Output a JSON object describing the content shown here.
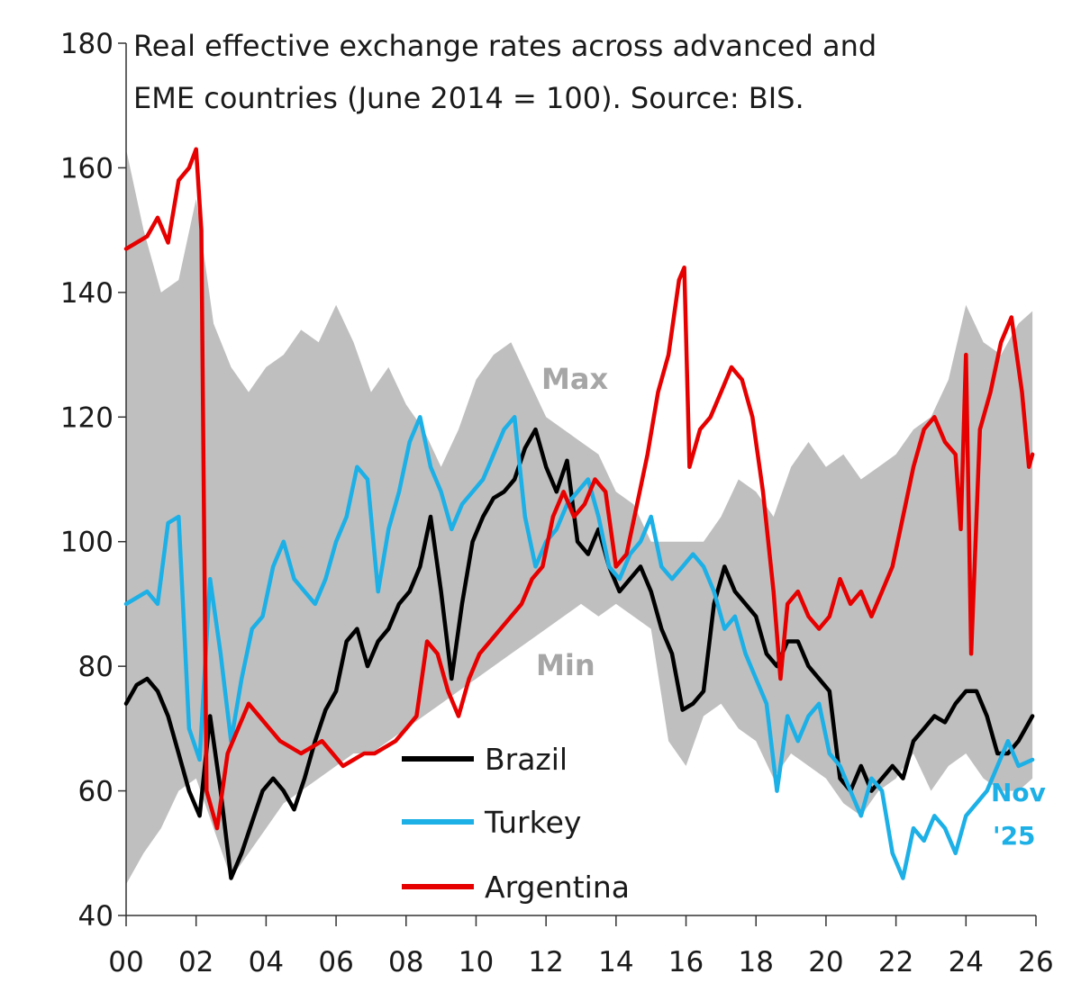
{
  "chart_data": {
    "type": "line",
    "title_lines": [
      "Real effective exchange rates across advanced and",
      "EME countries (June 2014 = 100). Source: BIS."
    ],
    "xlim": [
      2000,
      2026
    ],
    "ylim": [
      40,
      180
    ],
    "x_ticks": [
      0,
      2,
      4,
      6,
      8,
      10,
      12,
      14,
      16,
      18,
      20,
      22,
      24,
      26
    ],
    "x_tick_labels": [
      "00",
      "02",
      "04",
      "06",
      "08",
      "10",
      "12",
      "14",
      "16",
      "18",
      "20",
      "22",
      "24",
      "26"
    ],
    "y_ticks": [
      40,
      60,
      80,
      100,
      120,
      140,
      160,
      180
    ],
    "y_tick_labels": [
      "40",
      "60",
      "80",
      "100",
      "120",
      "140",
      "160",
      "180"
    ],
    "band": {
      "max_label": "Max",
      "min_label": "Min",
      "color": "#bfbfbf",
      "x": [
        0,
        0.5,
        1,
        1.5,
        2,
        2.5,
        3,
        3.5,
        4,
        4.5,
        5,
        5.5,
        6,
        6.5,
        7,
        7.5,
        8,
        8.5,
        9,
        9.5,
        10,
        10.5,
        11,
        11.5,
        12,
        12.5,
        13,
        13.5,
        14,
        14.5,
        15,
        15.5,
        16,
        16.5,
        17,
        17.5,
        18,
        18.5,
        19,
        19.5,
        20,
        20.5,
        21,
        21.5,
        22,
        22.5,
        23,
        23.5,
        24,
        24.5,
        25,
        25.5,
        25.9
      ],
      "max": [
        163,
        150,
        140,
        142,
        155,
        135,
        128,
        124,
        128,
        130,
        134,
        132,
        138,
        132,
        124,
        128,
        122,
        118,
        112,
        118,
        126,
        130,
        132,
        126,
        120,
        118,
        116,
        114,
        108,
        106,
        100,
        100,
        100,
        100,
        104,
        110,
        108,
        104,
        112,
        116,
        112,
        114,
        110,
        112,
        114,
        118,
        120,
        126,
        138,
        132,
        130,
        135,
        137
      ],
      "min": [
        45,
        50,
        54,
        60,
        62,
        54,
        46,
        50,
        54,
        58,
        60,
        62,
        64,
        66,
        66,
        68,
        70,
        72,
        74,
        76,
        78,
        80,
        82,
        84,
        86,
        88,
        90,
        88,
        90,
        88,
        86,
        68,
        64,
        72,
        74,
        70,
        68,
        62,
        66,
        64,
        62,
        58,
        56,
        60,
        62,
        66,
        60,
        64,
        66,
        62,
        60,
        60,
        62
      ]
    },
    "series": [
      {
        "name": "Brazil",
        "color": "#000000",
        "x": [
          0,
          0.3,
          0.6,
          0.9,
          1.2,
          1.5,
          1.8,
          2.1,
          2.4,
          2.7,
          3.0,
          3.3,
          3.6,
          3.9,
          4.2,
          4.5,
          4.8,
          5.1,
          5.4,
          5.7,
          6.0,
          6.3,
          6.6,
          6.9,
          7.2,
          7.5,
          7.8,
          8.1,
          8.4,
          8.7,
          9.0,
          9.3,
          9.6,
          9.9,
          10.2,
          10.5,
          10.8,
          11.1,
          11.4,
          11.7,
          12.0,
          12.3,
          12.6,
          12.9,
          13.2,
          13.5,
          13.8,
          14.1,
          14.4,
          14.7,
          15.0,
          15.3,
          15.6,
          15.9,
          16.2,
          16.5,
          16.8,
          17.1,
          17.4,
          17.7,
          18.0,
          18.3,
          18.6,
          18.9,
          19.2,
          19.5,
          19.8,
          20.1,
          20.4,
          20.7,
          21.0,
          21.3,
          21.6,
          21.9,
          22.2,
          22.5,
          22.8,
          23.1,
          23.4,
          23.7,
          24.0,
          24.3,
          24.6,
          24.9,
          25.2,
          25.5,
          25.9
        ],
        "y": [
          74,
          77,
          78,
          76,
          72,
          66,
          60,
          56,
          72,
          60,
          46,
          50,
          55,
          60,
          62,
          60,
          57,
          62,
          68,
          73,
          76,
          84,
          86,
          80,
          84,
          86,
          90,
          92,
          96,
          104,
          92,
          78,
          90,
          100,
          104,
          107,
          108,
          110,
          115,
          118,
          112,
          108,
          113,
          100,
          98,
          102,
          96,
          92,
          94,
          96,
          92,
          86,
          82,
          73,
          74,
          76,
          90,
          96,
          92,
          90,
          88,
          82,
          80,
          84,
          84,
          80,
          78,
          76,
          62,
          60,
          64,
          60,
          62,
          64,
          62,
          68,
          70,
          72,
          71,
          74,
          76,
          76,
          72,
          66,
          66,
          68,
          72
        ]
      },
      {
        "name": "Turkey",
        "color": "#1cb0e6",
        "x": [
          0,
          0.3,
          0.6,
          0.9,
          1.2,
          1.5,
          1.8,
          2.1,
          2.4,
          2.7,
          3.0,
          3.3,
          3.6,
          3.9,
          4.2,
          4.5,
          4.8,
          5.1,
          5.4,
          5.7,
          6.0,
          6.3,
          6.6,
          6.9,
          7.2,
          7.5,
          7.8,
          8.1,
          8.4,
          8.7,
          9.0,
          9.3,
          9.6,
          9.9,
          10.2,
          10.5,
          10.8,
          11.1,
          11.4,
          11.7,
          12.0,
          12.3,
          12.6,
          12.9,
          13.2,
          13.5,
          13.8,
          14.1,
          14.4,
          14.7,
          15.0,
          15.3,
          15.6,
          15.9,
          16.2,
          16.5,
          16.8,
          17.1,
          17.4,
          17.7,
          18.0,
          18.3,
          18.6,
          18.9,
          19.2,
          19.5,
          19.8,
          20.1,
          20.4,
          20.7,
          21.0,
          21.3,
          21.6,
          21.9,
          22.2,
          22.5,
          22.8,
          23.1,
          23.4,
          23.7,
          24.0,
          24.3,
          24.6,
          24.9,
          25.2,
          25.5,
          25.9
        ],
        "y": [
          90,
          91,
          92,
          90,
          103,
          104,
          70,
          65,
          94,
          82,
          68,
          78,
          86,
          88,
          96,
          100,
          94,
          92,
          90,
          94,
          100,
          104,
          112,
          110,
          92,
          102,
          108,
          116,
          120,
          112,
          108,
          102,
          106,
          108,
          110,
          114,
          118,
          120,
          104,
          96,
          100,
          102,
          106,
          108,
          110,
          104,
          96,
          94,
          98,
          100,
          104,
          96,
          94,
          96,
          98,
          96,
          92,
          86,
          88,
          82,
          78,
          74,
          60,
          72,
          68,
          72,
          74,
          66,
          64,
          60,
          56,
          62,
          60,
          50,
          46,
          54,
          52,
          56,
          54,
          50,
          56,
          58,
          60,
          64,
          68,
          64,
          65
        ]
      },
      {
        "name": "Argentina",
        "color": "#e60000",
        "x": [
          0,
          0.3,
          0.6,
          0.9,
          1.2,
          1.5,
          1.8,
          2.0,
          2.15,
          2.3,
          2.6,
          2.9,
          3.2,
          3.5,
          3.8,
          4.1,
          4.4,
          4.7,
          5.0,
          5.3,
          5.6,
          5.9,
          6.2,
          6.5,
          6.8,
          7.1,
          7.4,
          7.7,
          8.0,
          8.3,
          8.6,
          8.9,
          9.2,
          9.5,
          9.8,
          10.1,
          10.4,
          10.7,
          11.0,
          11.3,
          11.6,
          11.9,
          12.2,
          12.5,
          12.8,
          13.1,
          13.4,
          13.7,
          14.0,
          14.3,
          14.6,
          14.9,
          15.2,
          15.5,
          15.8,
          15.95,
          16.1,
          16.4,
          16.7,
          17.0,
          17.3,
          17.6,
          17.9,
          18.2,
          18.5,
          18.7,
          18.9,
          19.2,
          19.5,
          19.8,
          20.1,
          20.4,
          20.7,
          21.0,
          21.3,
          21.6,
          21.9,
          22.2,
          22.5,
          22.8,
          23.1,
          23.4,
          23.7,
          23.85,
          24.0,
          24.15,
          24.4,
          24.7,
          25.0,
          25.3,
          25.6,
          25.8,
          25.9
        ],
        "y": [
          147,
          148,
          149,
          152,
          148,
          158,
          160,
          163,
          150,
          60,
          54,
          66,
          70,
          74,
          72,
          70,
          68,
          67,
          66,
          67,
          68,
          66,
          64,
          65,
          66,
          66,
          67,
          68,
          70,
          72,
          84,
          82,
          76,
          72,
          78,
          82,
          84,
          86,
          88,
          90,
          94,
          96,
          104,
          108,
          104,
          106,
          110,
          108,
          96,
          98,
          106,
          114,
          124,
          130,
          142,
          144,
          112,
          118,
          120,
          124,
          128,
          126,
          120,
          108,
          92,
          78,
          90,
          92,
          88,
          86,
          88,
          94,
          90,
          92,
          88,
          92,
          96,
          104,
          112,
          118,
          120,
          116,
          114,
          102,
          130,
          82,
          118,
          124,
          132,
          136,
          124,
          112,
          114
        ]
      }
    ],
    "legend": [
      {
        "label": "Brazil",
        "color": "#000000"
      },
      {
        "label": "Turkey",
        "color": "#1cb0e6"
      },
      {
        "label": "Argentina",
        "color": "#e60000"
      }
    ],
    "end_annotation": [
      "Nov",
      "'25"
    ],
    "legend_position": "bottom-center"
  }
}
